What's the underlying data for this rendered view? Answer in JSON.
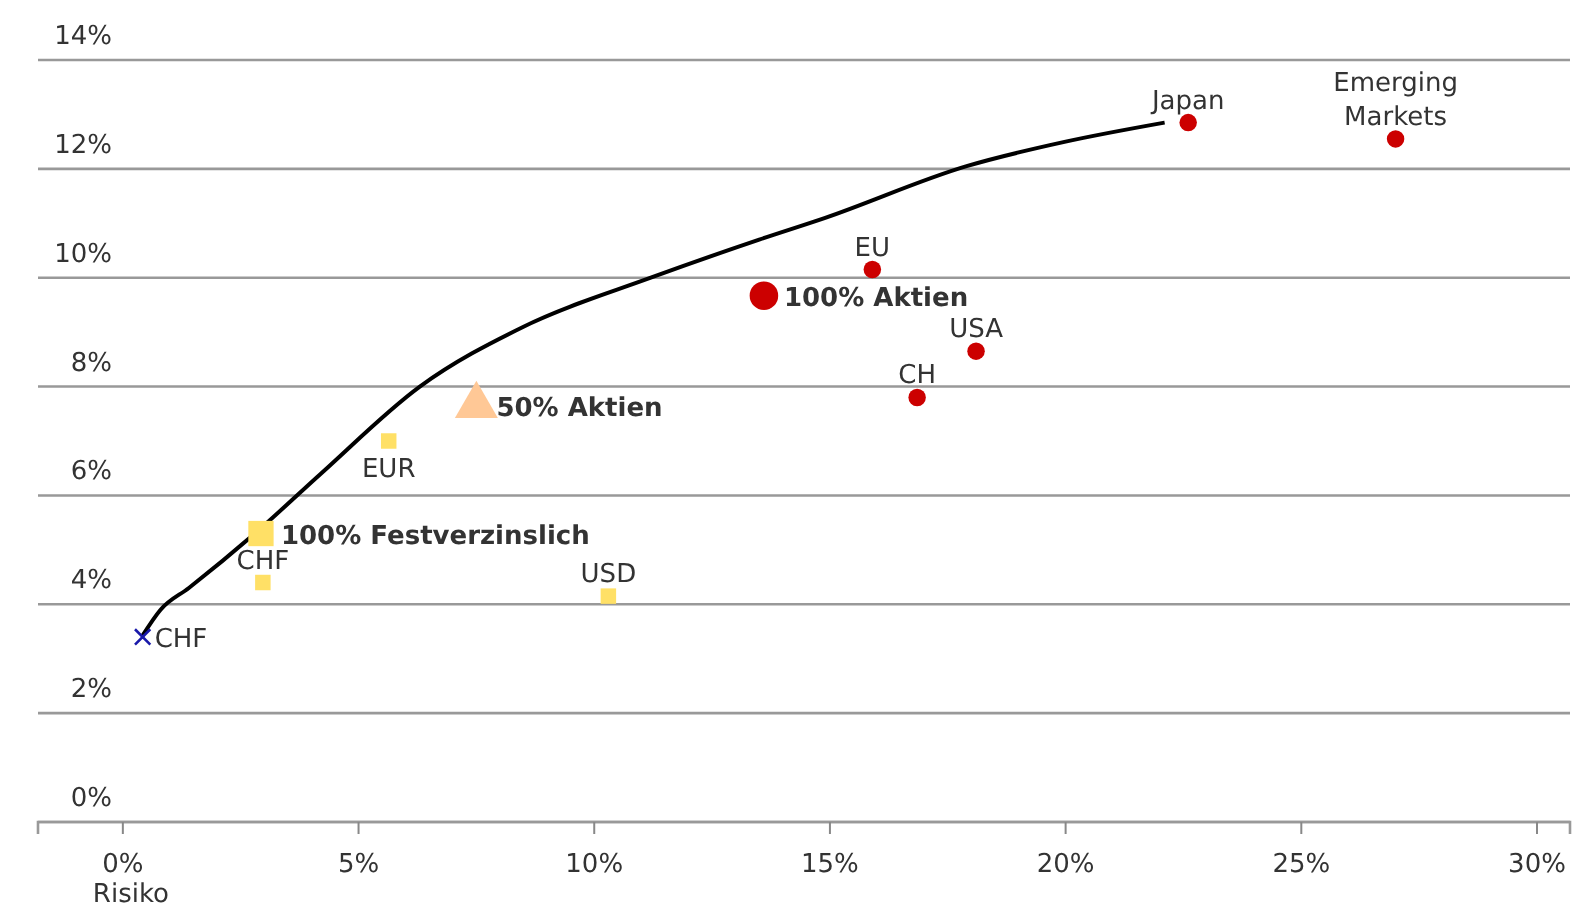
{
  "chart_data": {
    "type": "scatter",
    "xlabel": "Risiko",
    "xlim": [
      -1.8,
      30.7
    ],
    "ylim": [
      0,
      14
    ],
    "xticks": [
      {
        "value": 0,
        "label": "0%"
      },
      {
        "value": 5,
        "label": "5%"
      },
      {
        "value": 10,
        "label": "10%"
      },
      {
        "value": 15,
        "label": "15%"
      },
      {
        "value": 20,
        "label": "20%"
      },
      {
        "value": 25,
        "label": "25%"
      },
      {
        "value": 30,
        "label": "30%"
      }
    ],
    "yticks": [
      {
        "value": 0,
        "label": "0%"
      },
      {
        "value": 2,
        "label": "2%"
      },
      {
        "value": 4,
        "label": "4%"
      },
      {
        "value": 6,
        "label": "6%"
      },
      {
        "value": 8,
        "label": "8%"
      },
      {
        "value": 10,
        "label": "10%"
      },
      {
        "value": 12,
        "label": "12%"
      },
      {
        "value": 14,
        "label": "14%"
      }
    ],
    "grid": "y",
    "series": [
      {
        "type": "line",
        "color": "#000000",
        "marker": "none",
        "x": [
          0.4,
          0.8,
          1.4,
          2.8,
          4.2,
          6.3,
          8.5,
          11.2,
          13.5,
          14.9,
          17.9,
          20.0,
          22.1
        ],
        "values": [
          3.4,
          3.9,
          4.3,
          5.3,
          6.4,
          8.0,
          9.1,
          10.0,
          10.7,
          11.1,
          12.05,
          12.5,
          12.85
        ]
      },
      {
        "name": "CHF",
        "color": "#1a1aaa",
        "marker": "cross",
        "x": [
          0.42
        ],
        "values": [
          3.4
        ]
      },
      {
        "name": "CHF",
        "color": "#ffe066",
        "marker": "square",
        "x": [
          2.97
        ],
        "values": [
          4.4
        ]
      },
      {
        "name": "100% Festverzinslich",
        "color": "#ffe066",
        "marker": "square",
        "x": [
          2.93
        ],
        "values": [
          5.3
        ]
      },
      {
        "name": "EUR",
        "color": "#ffe066",
        "marker": "square",
        "x": [
          5.64
        ],
        "values": [
          7.0
        ]
      },
      {
        "name": "USD",
        "color": "#ffe066",
        "marker": "square",
        "x": [
          10.3
        ],
        "values": [
          4.15
        ]
      },
      {
        "name": "50% Aktien",
        "color": "#ffc896",
        "marker": "triangle",
        "x": [
          7.5
        ],
        "values": [
          7.65
        ]
      },
      {
        "name": "100% Aktien",
        "color": "#cc0000",
        "marker": "circle",
        "x": [
          13.6
        ],
        "values": [
          9.67
        ]
      },
      {
        "name": "EU",
        "color": "#cc0000",
        "marker": "circle",
        "x": [
          15.9
        ],
        "values": [
          10.15
        ]
      },
      {
        "name": "USA",
        "color": "#cc0000",
        "marker": "circle",
        "x": [
          18.1
        ],
        "values": [
          8.65
        ]
      },
      {
        "name": "CH",
        "color": "#cc0000",
        "marker": "circle",
        "x": [
          16.85
        ],
        "values": [
          7.8
        ]
      },
      {
        "name": "Japan",
        "color": "#cc0000",
        "marker": "circle",
        "x": [
          22.6
        ],
        "values": [
          12.85
        ]
      },
      {
        "name": "Emerging Markets",
        "color": "#cc0000",
        "marker": "circle",
        "x": [
          27.0
        ],
        "values": [
          12.55
        ]
      }
    ]
  }
}
